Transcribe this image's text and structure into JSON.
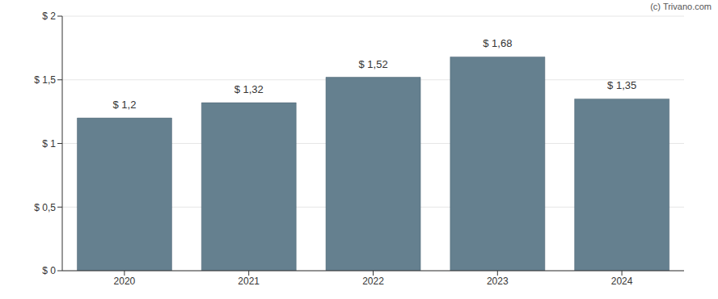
{
  "chart_data": {
    "type": "bar",
    "annotations": [
      "(c) Trivano.com"
    ],
    "categories": [
      "2020",
      "2021",
      "2022",
      "2023",
      "2024"
    ],
    "values": [
      1.2,
      1.32,
      1.52,
      1.68,
      1.35
    ],
    "value_labels": [
      "$ 1,2",
      "$ 1,32",
      "$ 1,52",
      "$ 1,68",
      "$ 1,35"
    ],
    "data_labels": true,
    "color": "#65808f",
    "ylim": [
      0,
      2
    ],
    "yticks": [
      {
        "value": 0,
        "label": "$ 0"
      },
      {
        "value": 0.5,
        "label": "$ 0,5"
      },
      {
        "value": 1,
        "label": "$ 1"
      },
      {
        "value": 1.5,
        "label": "$ 1,5"
      },
      {
        "value": 2,
        "label": "$ 2"
      }
    ],
    "grid": true
  }
}
